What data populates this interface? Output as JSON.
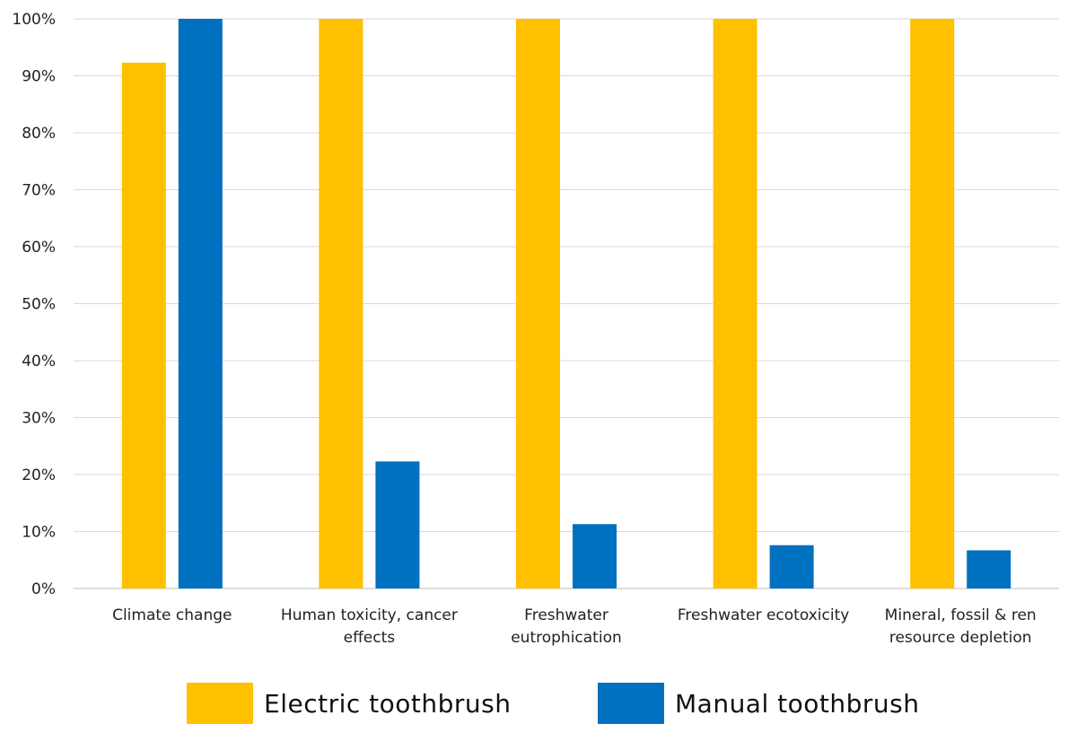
{
  "chart_data": {
    "type": "bar",
    "categories": [
      [
        "Climate change"
      ],
      [
        "Human toxicity, cancer",
        "effects"
      ],
      [
        "Freshwater",
        "eutrophication"
      ],
      [
        "Freshwater ecotoxicity"
      ],
      [
        "Mineral, fossil & ren",
        "resource depletion"
      ]
    ],
    "series": [
      {
        "name": "Electric toothbrush",
        "color": "#FFC000",
        "values": [
          92.3,
          100,
          100,
          100,
          100
        ]
      },
      {
        "name": "Manual toothbrush",
        "color": "#0070C0",
        "values": [
          100,
          22.3,
          11.3,
          7.6,
          6.7
        ]
      }
    ],
    "y_ticks": [
      "0%",
      "10%",
      "20%",
      "30%",
      "40%",
      "50%",
      "60%",
      "70%",
      "80%",
      "90%",
      "100%"
    ],
    "ylim": [
      0,
      100
    ],
    "grid": true,
    "legend_position": "bottom"
  }
}
